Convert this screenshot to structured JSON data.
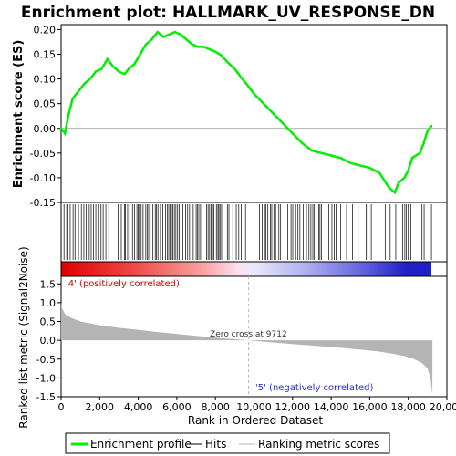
{
  "chart_data": [
    {
      "type": "line",
      "title": "Enrichment plot: HALLMARK_UV_RESPONSE_DN",
      "ylabel": "Enrichment score (ES)",
      "xlim": [
        0,
        20000
      ],
      "ylim": [
        -0.15,
        0.21
      ],
      "yticks": [
        "-0.15",
        "-0.10",
        "-0.05",
        "0.00",
        "0.05",
        "0.10",
        "0.15",
        "0.20"
      ],
      "series": [
        {
          "name": "Enrichment profile",
          "color": "#00ee00",
          "x": [
            0,
            200,
            400,
            600,
            800,
            1000,
            1200,
            1500,
            1800,
            2100,
            2400,
            2700,
            3000,
            3300,
            3500,
            3800,
            4100,
            4400,
            4700,
            5000,
            5300,
            5600,
            5900,
            6200,
            6500,
            6800,
            7100,
            7400,
            7700,
            8000,
            8300,
            8600,
            9000,
            9400,
            9712,
            10000,
            10500,
            11000,
            11500,
            12000,
            12500,
            13000,
            13500,
            14000,
            14500,
            15000,
            15500,
            16000,
            16500,
            17000,
            17300,
            17500,
            17800,
            18000,
            18200,
            18400,
            18600,
            18800,
            19000,
            19200
          ],
          "values": [
            0.0,
            -0.01,
            0.03,
            0.06,
            0.07,
            0.08,
            0.09,
            0.1,
            0.115,
            0.12,
            0.14,
            0.125,
            0.115,
            0.11,
            0.12,
            0.13,
            0.15,
            0.17,
            0.18,
            0.195,
            0.185,
            0.19,
            0.195,
            0.19,
            0.18,
            0.17,
            0.165,
            0.165,
            0.16,
            0.155,
            0.148,
            0.135,
            0.12,
            0.1,
            0.085,
            0.07,
            0.05,
            0.03,
            0.01,
            -0.01,
            -0.03,
            -0.045,
            -0.05,
            -0.055,
            -0.06,
            -0.07,
            -0.075,
            -0.08,
            -0.09,
            -0.12,
            -0.13,
            -0.11,
            -0.1,
            -0.085,
            -0.06,
            -0.055,
            -0.05,
            -0.03,
            -0.005,
            0.005
          ]
        }
      ]
    },
    {
      "type": "heatmap",
      "name": "Hits",
      "hit_positions": [
        150,
        290,
        360,
        470,
        620,
        720,
        900,
        1050,
        1180,
        1300,
        1460,
        1560,
        1680,
        1800,
        1950,
        2070,
        2180,
        2320,
        2470,
        2950,
        3120,
        3280,
        3340,
        3450,
        3560,
        3700,
        3800,
        3930,
        4000,
        4060,
        4150,
        4250,
        4390,
        4460,
        4540,
        4620,
        4760,
        4880,
        4940,
        5020,
        5150,
        5270,
        5420,
        5500,
        5580,
        5650,
        5720,
        5790,
        5870,
        5950,
        6040,
        6130,
        6310,
        6450,
        6560,
        6660,
        6850,
        7000,
        7060,
        7140,
        7230,
        7300,
        7540,
        7620,
        7700,
        7780,
        7850,
        7920,
        8050,
        8130,
        8180,
        8240,
        8320,
        8620,
        8700,
        8900,
        9080,
        9210,
        9340,
        9560,
        10280,
        10420,
        10550,
        10620,
        10720,
        10850,
        10920,
        11030,
        11120,
        11290,
        11380,
        11750,
        11920,
        12010,
        12160,
        12280,
        12380,
        12560,
        12720,
        12850,
        12950,
        13050,
        13130,
        13210,
        13360,
        13420,
        13500,
        13870,
        14040,
        14160,
        14260,
        14500,
        14800,
        15100,
        15400,
        15820,
        15900,
        16080,
        16800,
        17060,
        17350,
        17700,
        17820,
        17890,
        18000,
        18130,
        18600,
        18710,
        18820,
        19200
      ]
    },
    {
      "type": "area",
      "ylabel": "Ranked list metric (Signal2Noise)",
      "xlabel": "Rank in Ordered Dataset",
      "xlim": [
        0,
        20000
      ],
      "ylim": [
        -1.5,
        1.7
      ],
      "xticks": [
        "0",
        "2,000",
        "4,000",
        "6,000",
        "8,000",
        "10,000",
        "12,000",
        "14,000",
        "16,000",
        "18,000",
        "20,000"
      ],
      "yticks": [
        "-1.5",
        "-1.0",
        "-0.5",
        "0.0",
        "0.5",
        "1.0",
        "1.5"
      ],
      "zero_cross": 9712,
      "zero_cross_label": "Zero cross at 9712",
      "pos_label": "'4' (positively correlated)",
      "neg_label": "'5' (negatively correlated)",
      "x": [
        0,
        50,
        200,
        500,
        1000,
        2000,
        3000,
        4000,
        5000,
        6000,
        7000,
        8000,
        9000,
        9712,
        10500,
        11500,
        12500,
        13500,
        14500,
        15500,
        16500,
        17200,
        17800,
        18300,
        18700,
        19000,
        19150,
        19250
      ],
      "values": [
        1.0,
        0.85,
        0.7,
        0.6,
        0.5,
        0.4,
        0.33,
        0.28,
        0.22,
        0.17,
        0.12,
        0.07,
        0.03,
        0.0,
        -0.04,
        -0.08,
        -0.12,
        -0.16,
        -0.2,
        -0.25,
        -0.3,
        -0.36,
        -0.42,
        -0.5,
        -0.6,
        -0.75,
        -1.0,
        -1.45
      ],
      "color": "#b4b4b4"
    }
  ],
  "legend": {
    "items": [
      {
        "label": "Enrichment profile",
        "color": "#00ee00"
      },
      {
        "label": "Hits",
        "color": "#000000"
      },
      {
        "label": "Ranking metric scores",
        "color": "#b4b4b4"
      }
    ]
  }
}
